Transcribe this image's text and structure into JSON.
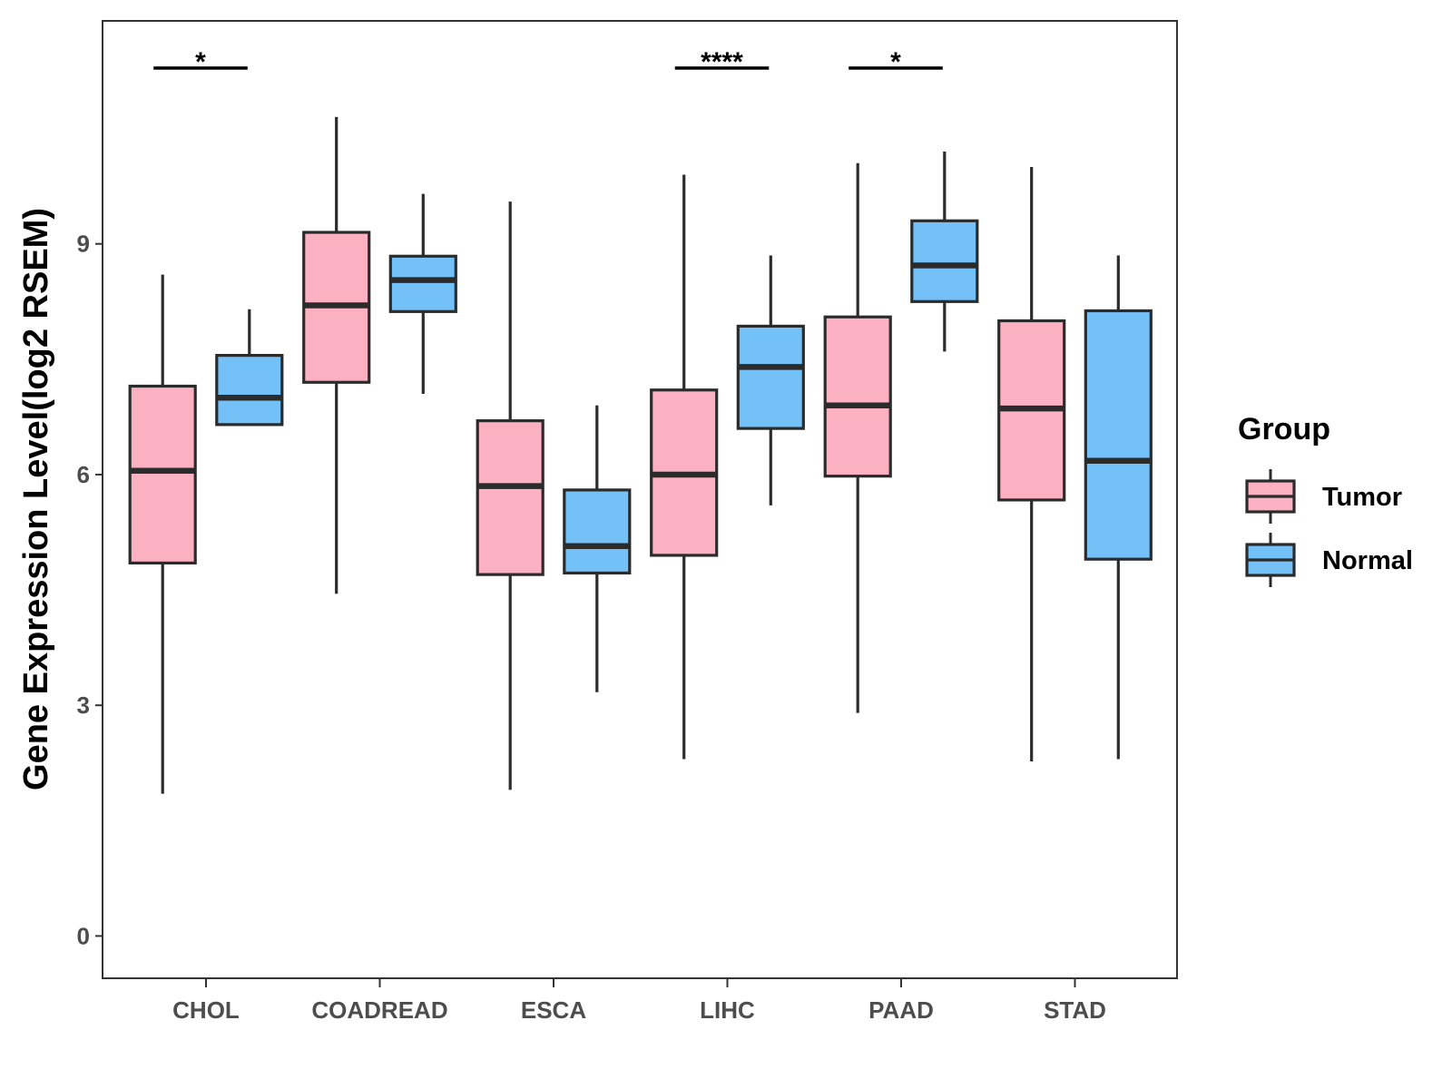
{
  "chart_data": {
    "type": "boxplot",
    "title": "",
    "xlabel": "",
    "ylabel": "Gene Expression Level(log2 RSEM)",
    "ylim": [
      -0.55,
      11.9
    ],
    "yticks": [
      0,
      3,
      6,
      9
    ],
    "categories": [
      "CHOL",
      "COADREAD",
      "ESCA",
      "LIHC",
      "PAAD",
      "STAD"
    ],
    "legend": {
      "title": "Group",
      "position": "right"
    },
    "series": [
      {
        "name": "Tumor",
        "color": "#fbb1c2",
        "boxes": [
          {
            "min": 1.85,
            "q1": 4.85,
            "median": 6.05,
            "q3": 7.15,
            "max": 8.6
          },
          {
            "min": 4.45,
            "q1": 7.2,
            "median": 8.2,
            "q3": 9.15,
            "max": 10.65
          },
          {
            "min": 1.9,
            "q1": 4.7,
            "median": 5.85,
            "q3": 6.7,
            "max": 9.55
          },
          {
            "min": 2.3,
            "q1": 4.95,
            "median": 6.0,
            "q3": 7.1,
            "max": 9.9
          },
          {
            "min": 2.9,
            "q1": 5.98,
            "median": 6.9,
            "q3": 8.05,
            "max": 10.05
          },
          {
            "min": 2.27,
            "q1": 5.67,
            "median": 6.86,
            "q3": 8.0,
            "max": 10.0
          }
        ]
      },
      {
        "name": "Normal",
        "color": "#74c1f7",
        "boxes": [
          {
            "min": 6.65,
            "q1": 6.65,
            "median": 7.0,
            "q3": 7.55,
            "max": 8.15
          },
          {
            "min": 7.05,
            "q1": 8.12,
            "median": 8.53,
            "q3": 8.84,
            "max": 9.65
          },
          {
            "min": 3.17,
            "q1": 4.72,
            "median": 5.07,
            "q3": 5.8,
            "max": 6.9
          },
          {
            "min": 5.6,
            "q1": 6.6,
            "median": 7.4,
            "q3": 7.93,
            "max": 8.85
          },
          {
            "min": 7.6,
            "q1": 8.25,
            "median": 8.72,
            "q3": 9.3,
            "max": 10.2
          },
          {
            "min": 2.3,
            "q1": 4.9,
            "median": 6.18,
            "q3": 8.13,
            "max": 8.85
          }
        ]
      }
    ],
    "significance": [
      {
        "category": "CHOL",
        "label": "*"
      },
      {
        "category": "LIHC",
        "label": "****"
      },
      {
        "category": "PAAD",
        "label": "*"
      }
    ]
  }
}
